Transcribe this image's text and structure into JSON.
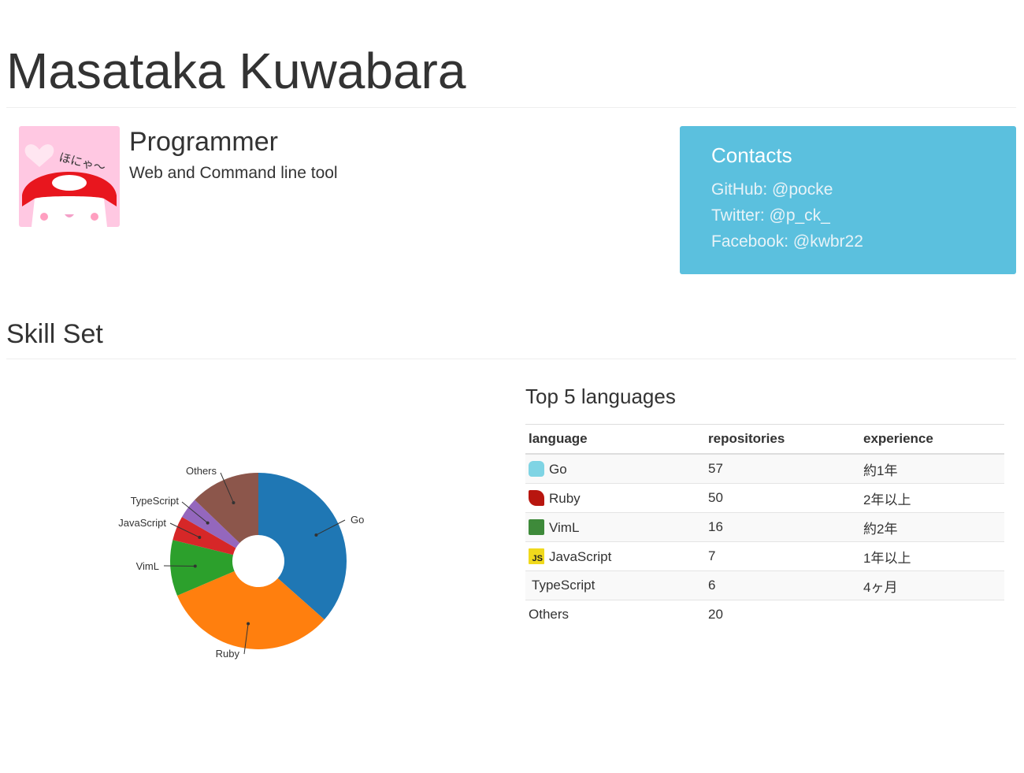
{
  "header": {
    "name": "Masataka Kuwabara"
  },
  "profile": {
    "role": "Programmer",
    "tagline": "Web and Command line tool",
    "avatar_text": "ほにゃ〜",
    "avatar_colors": {
      "bg": "#ffc8e2",
      "cap": "#e8161e"
    }
  },
  "contacts": {
    "title": "Contacts",
    "items": [
      {
        "label": "GitHub: @pocke"
      },
      {
        "label": "Twitter: @p_ck_"
      },
      {
        "label": "Facebook: @kwbr22"
      }
    ]
  },
  "skills": {
    "title": "Skill Set"
  },
  "table": {
    "title": "Top 5 languages",
    "headers": [
      "language",
      "repositories",
      "experience"
    ],
    "rows": [
      {
        "icon": "go-gopher-icon",
        "language": "Go",
        "repositories": "57",
        "experience": "約1年"
      },
      {
        "icon": "ruby-gem-icon",
        "language": "Ruby",
        "repositories": "50",
        "experience": "2年以上"
      },
      {
        "icon": "vim-logo-icon",
        "language": "VimL",
        "repositories": "16",
        "experience": "約2年"
      },
      {
        "icon": "javascript-logo-icon",
        "language": "JavaScript",
        "repositories": "7",
        "experience": "1年以上",
        "icon_text": "JS"
      },
      {
        "icon": "",
        "language": "TypeScript",
        "repositories": "6",
        "experience": "4ヶ月"
      },
      {
        "icon": "",
        "language": "Others",
        "repositories": "20",
        "experience": ""
      }
    ]
  },
  "chart_data": {
    "type": "pie",
    "donut": true,
    "title": "",
    "categories": [
      "Go",
      "Ruby",
      "VimL",
      "JavaScript",
      "TypeScript",
      "Others"
    ],
    "values": [
      57,
      50,
      16,
      7,
      6,
      20
    ],
    "colors": [
      "#1f77b4",
      "#ff7f0e",
      "#2ca02c",
      "#d62728",
      "#9467bd",
      "#8c564b"
    ],
    "legend": "none"
  }
}
